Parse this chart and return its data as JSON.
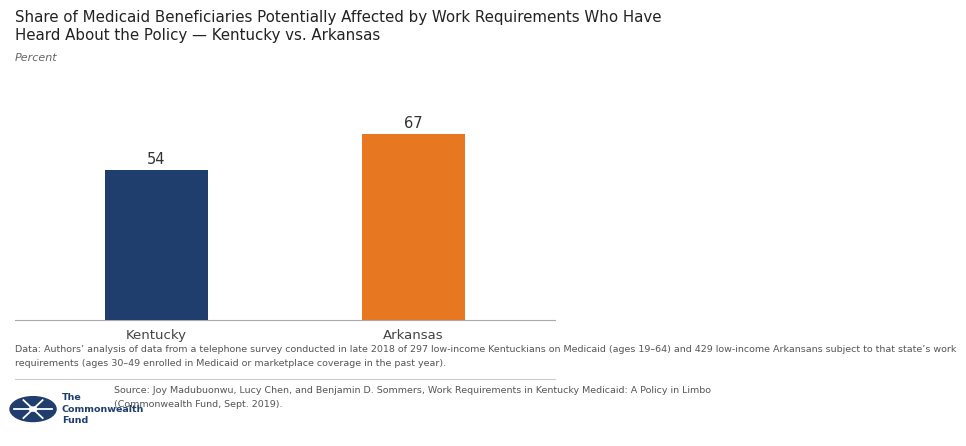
{
  "title_line1": "Share of Medicaid Beneficiaries Potentially Affected by Work Requirements Who Have",
  "title_line2": "Heard About the Policy — Kentucky vs. Arkansas",
  "ylabel": "Percent",
  "categories": [
    "Kentucky",
    "Arkansas"
  ],
  "values": [
    54,
    67
  ],
  "bar_colors": [
    "#1F3E6E",
    "#E87722"
  ],
  "ylim": [
    0,
    80
  ],
  "background_color": "#FFFFFF",
  "data_note_line1": "Data: Authors’ analysis of data from a telephone survey conducted in late 2018 of 297 low-income Kentuckians on Medicaid (ages 19–64) and 429 low-income Arkansans subject to that state’s work",
  "data_note_line2": "requirements (ages 30–49 enrolled in Medicaid or marketplace coverage in the past year).",
  "source_line1": "Source: Joy Madubuonwu, Lucy Chen, and Benjamin D. Sommers, Work Requirements in Kentucky Medicaid: A Policy in Limbo",
  "source_line2": "(Commonwealth Fund, Sept. 2019).",
  "org_name1": "The",
  "org_name2": "Commonwealth",
  "org_name3": "Fund",
  "title_fontsize": 10.8,
  "label_fontsize": 9.5,
  "note_fontsize": 6.8,
  "bar_label_fontsize": 10.5
}
